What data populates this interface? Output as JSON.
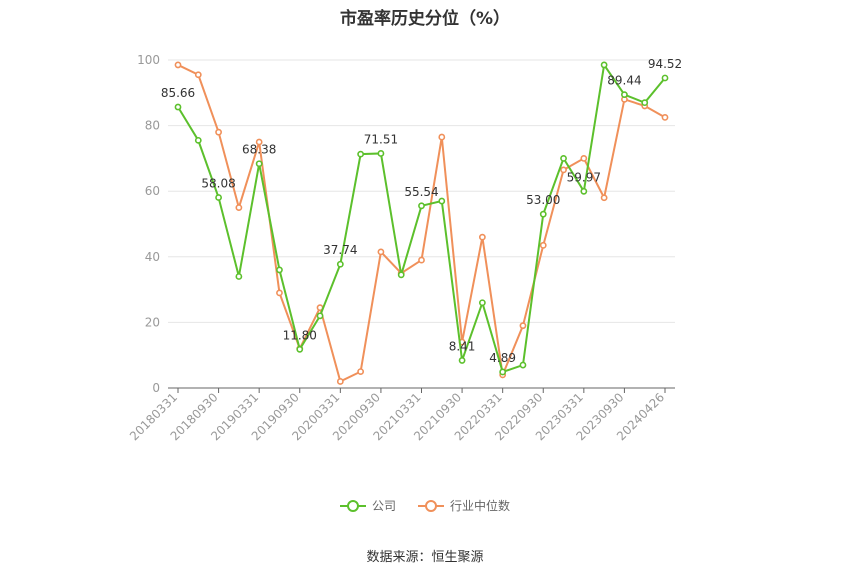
{
  "title": "市盈率历史分位（%）",
  "source": "数据来源：恒生聚源",
  "chart_data": {
    "type": "line",
    "title": "市盈率历史分位（%）",
    "ylim": [
      0,
      100
    ],
    "yticks": [
      0,
      20,
      40,
      60,
      80,
      100
    ],
    "grid": true,
    "legend_position": "bottom",
    "x": [
      "20180331",
      "20180630",
      "20180930",
      "20181231",
      "20190331",
      "20190630",
      "20190930",
      "20191231",
      "20200331",
      "20200630",
      "20200930",
      "20201231",
      "20210331",
      "20210630",
      "20210930",
      "20211231",
      "20220331",
      "20220630",
      "20220930",
      "20221231",
      "20230331",
      "20230630",
      "20230930",
      "20231231",
      "20240426"
    ],
    "x_tick_labels": [
      "20180331",
      "20180930",
      "20190331",
      "20190930",
      "20200331",
      "20200930",
      "20210331",
      "20210930",
      "20220331",
      "20220930",
      "20230331",
      "20230930",
      "20240426"
    ],
    "series": [
      {
        "name": "公司",
        "color": "#5cc02c",
        "values": [
          85.66,
          75.5,
          58.08,
          34.0,
          68.38,
          36.0,
          11.8,
          22.0,
          37.74,
          71.3,
          71.51,
          34.5,
          55.54,
          57.0,
          8.41,
          26.0,
          4.89,
          7.0,
          53.0,
          70.0,
          59.97,
          98.5,
          89.44,
          87.0,
          94.52
        ],
        "labels": {
          "0": "85.66",
          "2": "58.08",
          "4": "68.38",
          "6": "11.80",
          "8": "37.74",
          "10": "71.51",
          "12": "55.54",
          "14": "8.41",
          "16": "4.89",
          "18": "53.00",
          "20": "59.97",
          "22": "89.44",
          "24": "94.52"
        }
      },
      {
        "name": "行业中位数",
        "color": "#f0905a",
        "values": [
          98.5,
          95.5,
          78.0,
          55.0,
          75.0,
          29.0,
          12.0,
          24.5,
          2.0,
          5.0,
          41.5,
          35.0,
          39.0,
          76.5,
          14.0,
          46.0,
          4.0,
          19.0,
          43.5,
          66.5,
          70.0,
          58.0,
          88.0,
          86.0,
          82.5
        ]
      }
    ]
  }
}
